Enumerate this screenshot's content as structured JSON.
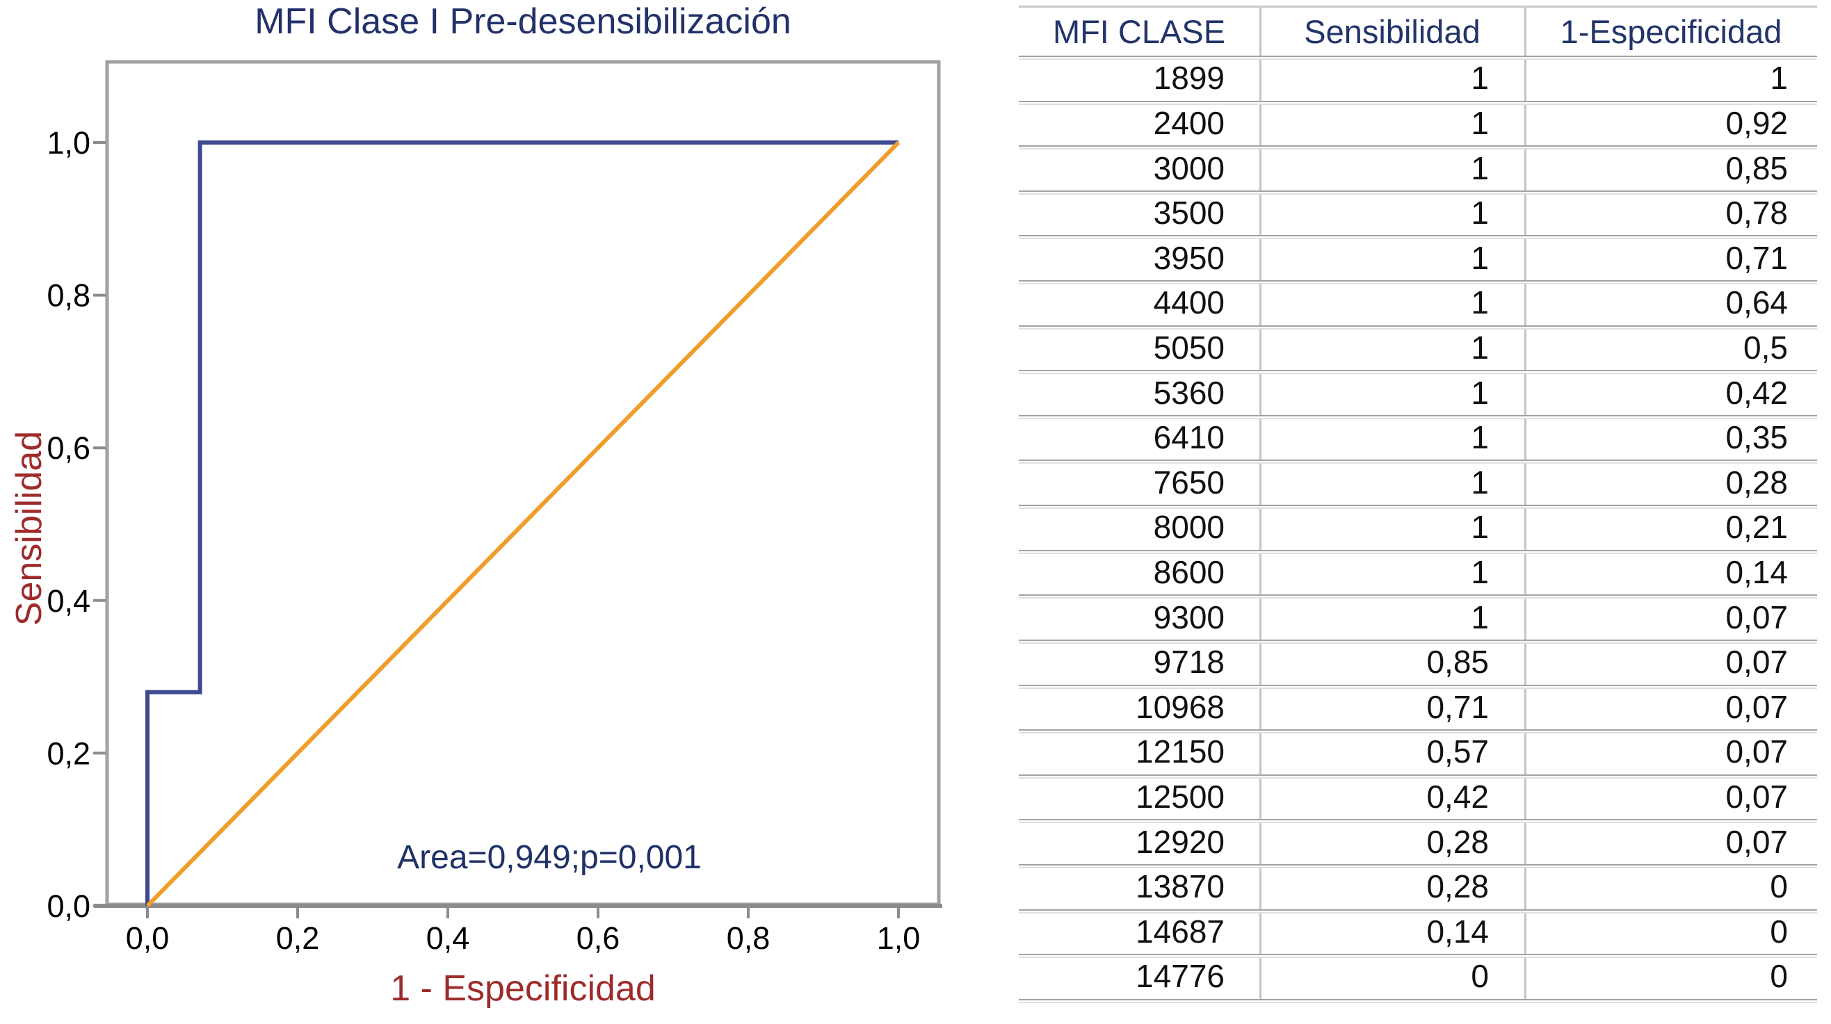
{
  "figure": {
    "title": "MFI Clase I Pre-desensibilización",
    "annotation": "Area=0,949;p=0,001",
    "x_axis_label": "1 - Especificidad",
    "y_axis_label": "Sensibilidad",
    "x_tick_labels": [
      "0,0",
      "0,2",
      "0,4",
      "0,6",
      "0,8",
      "1,0"
    ],
    "y_tick_labels": [
      "0,0",
      "0,2",
      "0,4",
      "0,6",
      "0,8",
      "1,0"
    ],
    "colors": {
      "roc_line": "#3d4a8f",
      "reference_line": "#f09d2c",
      "axis_line": "#8c8c8c",
      "plot_border": "#a1a1a1",
      "title_text": "#23316a",
      "axis_label_text": "#9e2b2b",
      "tick_label_text": "#000000",
      "annotation_text": "#1f3268",
      "table_header_text": "#22346a",
      "table_value_text": "#111111"
    }
  },
  "chart_data": {
    "type": "line",
    "title": "MFI Clase I Pre-desensibilización",
    "xlabel": "1 - Especificidad",
    "ylabel": "Sensibilidad",
    "xlim": [
      0,
      1
    ],
    "ylim": [
      0,
      1
    ],
    "grid": false,
    "legend": "none",
    "annotation": "Area=0,949;p=0,001",
    "series": [
      {
        "name": "ROC curve",
        "color": "#3d4a8f",
        "points": [
          [
            0,
            0
          ],
          [
            0,
            0.14
          ],
          [
            0,
            0.28
          ],
          [
            0.07,
            0.28
          ],
          [
            0.07,
            0.42
          ],
          [
            0.07,
            0.57
          ],
          [
            0.07,
            0.71
          ],
          [
            0.07,
            0.85
          ],
          [
            0.07,
            1
          ],
          [
            0.14,
            1
          ],
          [
            0.21,
            1
          ],
          [
            0.28,
            1
          ],
          [
            0.35,
            1
          ],
          [
            0.42,
            1
          ],
          [
            0.5,
            1
          ],
          [
            0.64,
            1
          ],
          [
            0.71,
            1
          ],
          [
            0.78,
            1
          ],
          [
            0.85,
            1
          ],
          [
            0.92,
            1
          ],
          [
            1,
            1
          ]
        ]
      },
      {
        "name": "Reference diagonal",
        "color": "#f09d2c",
        "points": [
          [
            0,
            0
          ],
          [
            1,
            1
          ]
        ]
      }
    ]
  },
  "table": {
    "headers": [
      "MFI CLASE",
      "Sensibilidad",
      "1-Especificidad"
    ],
    "rows": [
      [
        "1899",
        "1",
        "1"
      ],
      [
        "2400",
        "1",
        "0,92"
      ],
      [
        "3000",
        "1",
        "0,85"
      ],
      [
        "3500",
        "1",
        "0,78"
      ],
      [
        "3950",
        "1",
        "0,71"
      ],
      [
        "4400",
        "1",
        "0,64"
      ],
      [
        "5050",
        "1",
        "0,5"
      ],
      [
        "5360",
        "1",
        "0,42"
      ],
      [
        "6410",
        "1",
        "0,35"
      ],
      [
        "7650",
        "1",
        "0,28"
      ],
      [
        "8000",
        "1",
        "0,21"
      ],
      [
        "8600",
        "1",
        "0,14"
      ],
      [
        "9300",
        "1",
        "0,07"
      ],
      [
        "9718",
        "0,85",
        "0,07"
      ],
      [
        "10968",
        "0,71",
        "0,07"
      ],
      [
        "12150",
        "0,57",
        "0,07"
      ],
      [
        "12500",
        "0,42",
        "0,07"
      ],
      [
        "12920",
        "0,28",
        "0,07"
      ],
      [
        "13870",
        "0,28",
        "0"
      ],
      [
        "14687",
        "0,14",
        "0"
      ],
      [
        "14776",
        "0",
        "0"
      ]
    ]
  }
}
